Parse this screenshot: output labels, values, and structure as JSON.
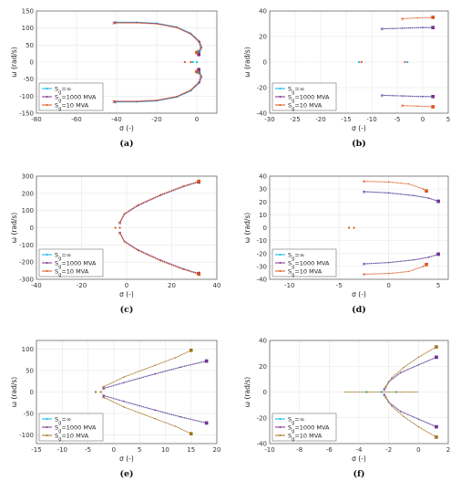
{
  "legend_labels": [
    "S_g=∞",
    "S_g=1000 MVA",
    "S_g=10 MVA"
  ],
  "series_colors": [
    "#00b8e6",
    "#7e2f8e",
    "#d95319"
  ],
  "series_colors_alt": [
    "#00b8e6",
    "#7e2f8e",
    "#a2711d"
  ],
  "xlabel": "σ (-)",
  "ylabel": "ω (rad/s)",
  "chart_data": [
    {
      "type": "scatter",
      "caption": "(a)",
      "xlim": [
        -80,
        10
      ],
      "ylim": [
        -150,
        150
      ],
      "xticks": [
        -80,
        -60,
        -40,
        -20,
        0
      ],
      "yticks": [
        -150,
        -100,
        -50,
        0,
        50,
        100,
        150
      ],
      "grid": true,
      "legend": "bottom-left",
      "series": [
        {
          "name": "S_g=∞",
          "upper": [
            [
              -40.5,
              117
            ],
            [
              -30,
              117
            ],
            [
              -20,
              114
            ],
            [
              -10,
              103
            ],
            [
              -3,
              85
            ],
            [
              1,
              62
            ],
            [
              2,
              45
            ],
            [
              1,
              30
            ]
          ],
          "poles": [
            [
              -2,
              0
            ],
            [
              0,
              0
            ]
          ]
        },
        {
          "name": "S_g=1000 MVA",
          "upper": [
            [
              -41,
              116
            ],
            [
              -30,
              116
            ],
            [
              -20,
              113
            ],
            [
              -10,
              102
            ],
            [
              -3,
              83
            ],
            [
              1.5,
              60
            ],
            [
              2.5,
              43
            ],
            [
              1,
              22
            ]
          ]
        },
        {
          "name": "S_g=10 MVA",
          "upper": [
            [
              -41.5,
              115
            ],
            [
              -30,
              115
            ],
            [
              -20,
              112
            ],
            [
              -10,
              101
            ],
            [
              -3,
              82
            ],
            [
              1,
              58
            ],
            [
              2,
              40
            ],
            [
              0,
              28
            ]
          ],
          "poles": [
            [
              -6,
              0
            ],
            [
              -3,
              0
            ]
          ]
        }
      ]
    },
    {
      "type": "scatter",
      "caption": "(b)",
      "xlim": [
        -30,
        5
      ],
      "ylim": [
        -40,
        40
      ],
      "xticks": [
        -30,
        -25,
        -20,
        -15,
        -10,
        -5,
        0,
        5
      ],
      "yticks": [
        -40,
        -20,
        0,
        20,
        40
      ],
      "grid": true,
      "legend": "bottom-left",
      "series": [
        {
          "name": "S_g=∞",
          "upper": [
            [
              -8,
              26
            ],
            [
              -4,
              26.5
            ],
            [
              0,
              27
            ],
            [
              2,
              27
            ]
          ],
          "poles": [
            [
              -12.5,
              0
            ],
            [
              -3,
              0
            ]
          ]
        },
        {
          "name": "S_g=1000 MVA",
          "upper": [
            [
              -8,
              26
            ],
            [
              -4,
              26.5
            ],
            [
              0,
              27
            ],
            [
              2,
              27
            ]
          ]
        },
        {
          "name": "S_g=10 MVA",
          "upper": [
            [
              -4,
              34
            ],
            [
              -1,
              34.5
            ],
            [
              2,
              35
            ]
          ],
          "poles": [
            [
              -12,
              0
            ],
            [
              -3.5,
              0
            ]
          ]
        }
      ]
    },
    {
      "type": "scatter",
      "caption": "(c)",
      "xlim": [
        -40,
        40
      ],
      "ylim": [
        -300,
        300
      ],
      "xticks": [
        -40,
        -20,
        0,
        20,
        40
      ],
      "yticks": [
        -300,
        -200,
        -100,
        0,
        100,
        200,
        300
      ],
      "grid": true,
      "legend": "bottom-left",
      "series": [
        {
          "name": "S_g=∞",
          "upper": [
            [
              -3,
              30
            ],
            [
              -1,
              80
            ],
            [
              5,
              130
            ],
            [
              15,
              190
            ],
            [
              25,
              240
            ],
            [
              32,
              268
            ]
          ]
        },
        {
          "name": "S_g=1000 MVA",
          "upper": [
            [
              -3,
              28
            ],
            [
              -1,
              78
            ],
            [
              5,
              128
            ],
            [
              15,
              188
            ],
            [
              25,
              238
            ],
            [
              32,
              266
            ]
          ]
        },
        {
          "name": "S_g=10 MVA",
          "upper": [
            [
              -3,
              32
            ],
            [
              -1,
              82
            ],
            [
              5,
              132
            ],
            [
              15,
              192
            ],
            [
              25,
              242
            ],
            [
              32,
              270
            ]
          ],
          "poles": [
            [
              -5,
              0
            ],
            [
              -3,
              0
            ]
          ]
        }
      ]
    },
    {
      "type": "scatter",
      "caption": "(d)",
      "xlim": [
        -12,
        6
      ],
      "ylim": [
        -40,
        40
      ],
      "xticks": [
        -10,
        -5,
        0,
        5
      ],
      "yticks": [
        -40,
        -30,
        -20,
        -10,
        0,
        10,
        20,
        30,
        40
      ],
      "grid": true,
      "legend": "bottom-left",
      "series": [
        {
          "name": "S_g=∞",
          "upper": [
            [
              -2.5,
              28
            ],
            [
              0,
              27
            ],
            [
              2.5,
              25
            ],
            [
              4,
              23
            ],
            [
              5,
              20.5
            ]
          ]
        },
        {
          "name": "S_g=1000 MVA",
          "upper": [
            [
              -2.5,
              28
            ],
            [
              0,
              27
            ],
            [
              2.5,
              25
            ],
            [
              4,
              23
            ],
            [
              5,
              20.5
            ]
          ]
        },
        {
          "name": "S_g=10 MVA",
          "upper": [
            [
              -2.5,
              36
            ],
            [
              0,
              35.5
            ],
            [
              2,
              34
            ],
            [
              3.5,
              30
            ],
            [
              3.8,
              28.5
            ]
          ],
          "poles": [
            [
              -4,
              0
            ],
            [
              -3.5,
              0
            ]
          ]
        }
      ]
    },
    {
      "type": "scatter",
      "caption": "(e)",
      "xlim": [
        -15,
        20
      ],
      "ylim": [
        -120,
        120
      ],
      "xticks": [
        -15,
        -10,
        -5,
        0,
        5,
        10,
        15,
        20
      ],
      "yticks": [
        -100,
        -50,
        0,
        50,
        100
      ],
      "grid": true,
      "legend": "bottom-left",
      "series": [
        {
          "name": "S_g=∞",
          "upper": [
            [
              -2,
              8
            ],
            [
              2,
              22
            ],
            [
              8,
              42
            ],
            [
              13,
              58
            ],
            [
              18,
              72
            ]
          ]
        },
        {
          "name": "S_g=1000 MVA",
          "upper": [
            [
              -2,
              8
            ],
            [
              2,
              22
            ],
            [
              8,
              42
            ],
            [
              13,
              58
            ],
            [
              18,
              72
            ]
          ]
        },
        {
          "name": "S_g=10 MVA",
          "upper": [
            [
              -2,
              12
            ],
            [
              2,
              35
            ],
            [
              8,
              62
            ],
            [
              12,
              80
            ],
            [
              15,
              97
            ]
          ],
          "poles": [
            [
              -3.5,
              0
            ],
            [
              -2.5,
              0
            ]
          ]
        }
      ]
    },
    {
      "type": "scatter",
      "caption": "(f)",
      "xlim": [
        -10,
        2
      ],
      "ylim": [
        -40,
        40
      ],
      "xticks": [
        -10,
        -8,
        -6,
        -4,
        -2,
        0,
        2
      ],
      "yticks": [
        -40,
        -20,
        0,
        20,
        40
      ],
      "grid": true,
      "legend": "bottom-left",
      "series": [
        {
          "name": "S_g=∞",
          "upper": [
            [
              -2.3,
              2
            ],
            [
              -2,
              8
            ],
            [
              -1.2,
              15
            ],
            [
              0,
              21
            ],
            [
              1.2,
              27
            ]
          ],
          "poles": [
            [
              -3.5,
              0
            ],
            [
              -2.5,
              0
            ],
            [
              -1.5,
              0
            ]
          ]
        },
        {
          "name": "S_g=1000 MVA",
          "upper": [
            [
              -2.3,
              2
            ],
            [
              -2,
              8
            ],
            [
              -1.2,
              15
            ],
            [
              0,
              21
            ],
            [
              1.2,
              27
            ]
          ]
        },
        {
          "name": "S_g=10 MVA",
          "upper": [
            [
              -2.2,
              4
            ],
            [
              -1.8,
              11
            ],
            [
              -1,
              19
            ],
            [
              0,
              27
            ],
            [
              1.2,
              35
            ]
          ],
          "axis_segment": [
            [
              -5,
              0
            ],
            [
              0,
              0
            ]
          ]
        }
      ]
    }
  ]
}
